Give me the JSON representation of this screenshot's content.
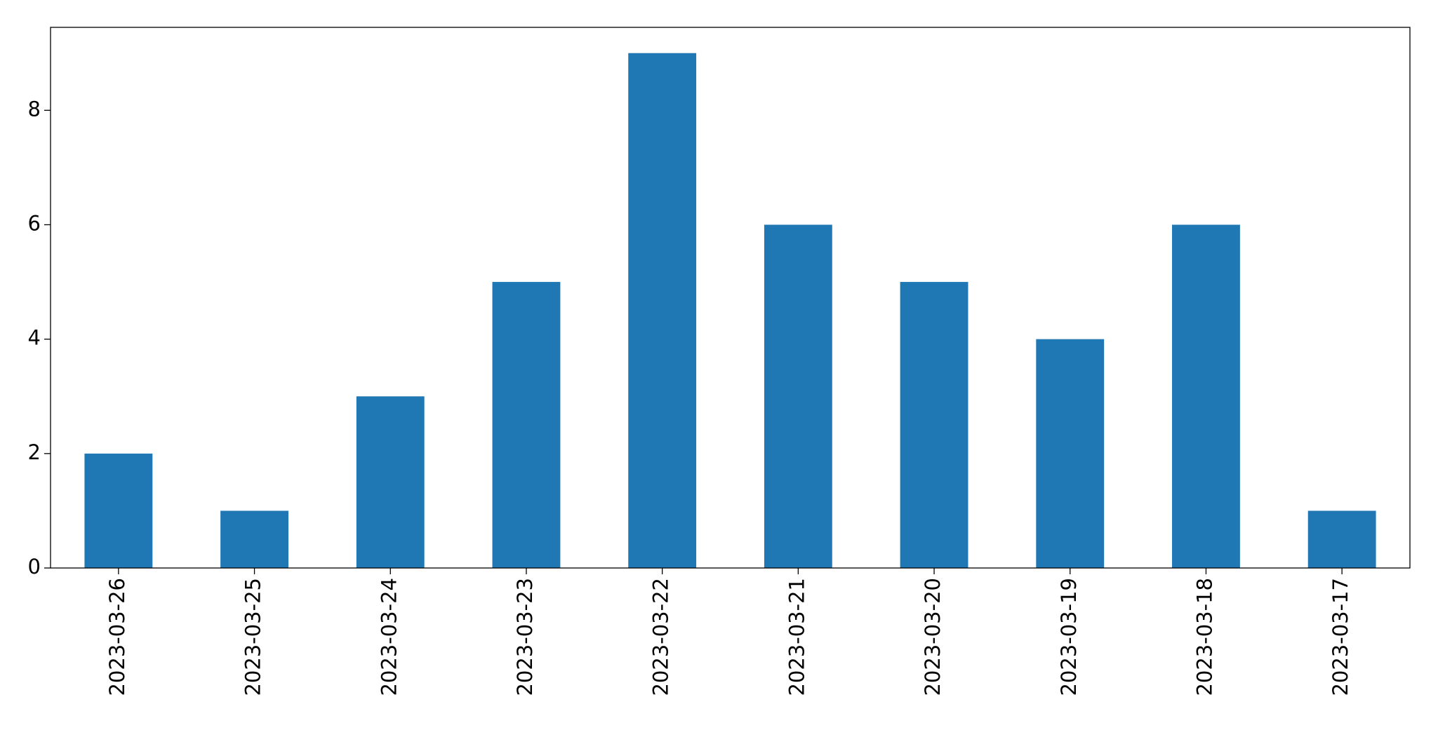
{
  "chart_data": {
    "type": "bar",
    "categories": [
      "2023-03-26",
      "2023-03-25",
      "2023-03-24",
      "2023-03-23",
      "2023-03-22",
      "2023-03-21",
      "2023-03-20",
      "2023-03-19",
      "2023-03-18",
      "2023-03-17"
    ],
    "values": [
      2,
      1,
      3,
      5,
      9,
      6,
      5,
      4,
      6,
      1
    ],
    "color": "#1f77b4",
    "ylim": [
      0,
      9.45
    ],
    "yticks": [
      0,
      2,
      4,
      6,
      8
    ],
    "grid": false
  }
}
